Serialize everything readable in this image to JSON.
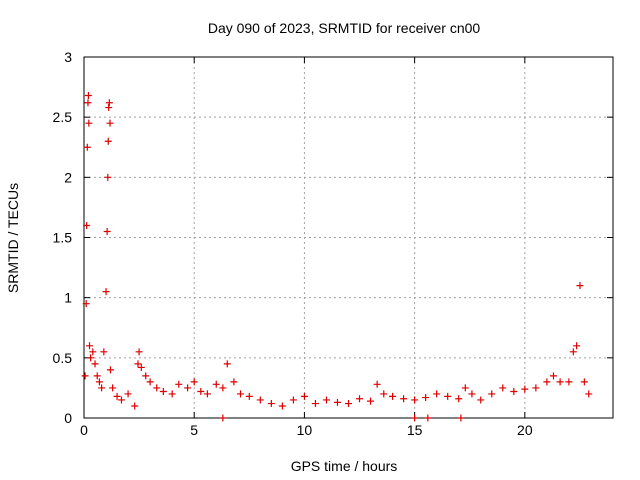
{
  "chart_data": {
    "type": "scatter",
    "title": "Day 090 of 2023, SRMTID for receiver cn00",
    "xlabel": "GPS time / hours",
    "ylabel": "SRMTID / TECUs",
    "xlim": [
      0,
      24
    ],
    "ylim": [
      0,
      3
    ],
    "xticks": [
      0,
      5,
      10,
      15,
      20
    ],
    "xtick_labels": [
      "0",
      "5",
      "10",
      "15",
      "20"
    ],
    "yticks": [
      0,
      0.5,
      1,
      1.5,
      2,
      2.5,
      3
    ],
    "ytick_labels": [
      "0",
      "0.5",
      "1",
      "1.5",
      "2",
      "2.5",
      "3"
    ],
    "grid": true,
    "marker": "+",
    "series": [
      {
        "name": "SRMTID",
        "color": "#dd0000",
        "x": [
          0.05,
          0.1,
          0.12,
          0.15,
          0.18,
          0.2,
          0.22,
          0.25,
          0.3,
          0.4,
          0.5,
          0.6,
          0.7,
          0.8,
          0.9,
          1.0,
          1.05,
          1.08,
          1.1,
          1.12,
          1.15,
          1.18,
          1.2,
          1.3,
          1.5,
          1.7,
          2.0,
          2.3,
          2.45,
          2.5,
          2.6,
          2.8,
          3.0,
          3.3,
          3.6,
          4.0,
          4.3,
          4.7,
          5.0,
          5.3,
          5.6,
          6.0,
          6.3,
          6.5,
          6.8,
          7.1,
          7.5,
          8.0,
          8.5,
          9.0,
          9.5,
          10.0,
          10.5,
          11.0,
          11.5,
          12.0,
          12.5,
          13.0,
          13.3,
          13.6,
          14.0,
          14.5,
          15.0,
          15.5,
          16.0,
          16.5,
          17.0,
          17.3,
          17.6,
          18.0,
          18.5,
          19.0,
          19.5,
          20.0,
          20.5,
          21.0,
          21.3,
          21.6,
          22.0,
          22.2,
          22.35,
          22.5,
          22.7,
          22.9,
          6.3,
          15.0,
          15.6,
          17.1
        ],
        "values": [
          0.35,
          0.95,
          1.6,
          2.25,
          2.62,
          2.68,
          2.45,
          0.6,
          0.5,
          0.55,
          0.45,
          0.35,
          0.3,
          0.25,
          0.55,
          1.05,
          1.55,
          2.0,
          2.3,
          2.58,
          2.62,
          2.45,
          0.4,
          0.25,
          0.18,
          0.15,
          0.2,
          0.1,
          0.45,
          0.55,
          0.42,
          0.35,
          0.3,
          0.25,
          0.22,
          0.2,
          0.28,
          0.25,
          0.3,
          0.22,
          0.2,
          0.28,
          0.25,
          0.45,
          0.3,
          0.2,
          0.18,
          0.15,
          0.12,
          0.1,
          0.15,
          0.18,
          0.12,
          0.15,
          0.13,
          0.12,
          0.16,
          0.14,
          0.28,
          0.2,
          0.18,
          0.16,
          0.15,
          0.17,
          0.2,
          0.18,
          0.16,
          0.25,
          0.2,
          0.15,
          0.2,
          0.25,
          0.22,
          0.24,
          0.25,
          0.3,
          0.35,
          0.3,
          0.3,
          0.55,
          0.6,
          1.1,
          0.3,
          0.2,
          0.0,
          0.0,
          0.0,
          0.0
        ]
      }
    ]
  }
}
